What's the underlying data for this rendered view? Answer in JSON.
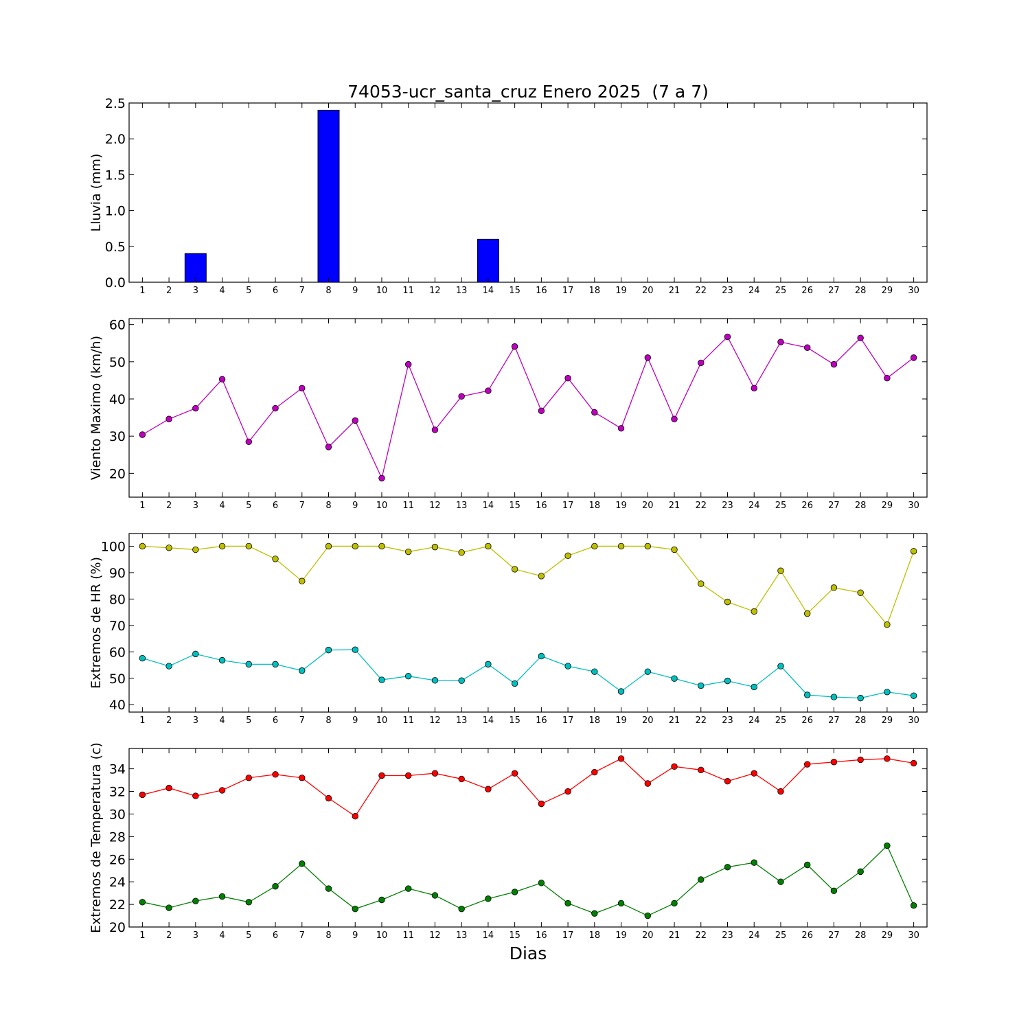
{
  "chart_data": [
    {
      "type": "bar",
      "title": "74053-ucr_santa_cruz Enero 2025  (7 a 7)",
      "ylabel": "Lluvia (mm)",
      "xlabel": "",
      "ylim": [
        0,
        2.5
      ],
      "yticks": [
        "0.0",
        "0.5",
        "1.0",
        "1.5",
        "2.0",
        "2.5"
      ],
      "categories": [
        "1",
        "2",
        "3",
        "4",
        "5",
        "6",
        "7",
        "8",
        "9",
        "10",
        "11",
        "12",
        "13",
        "14",
        "15",
        "16",
        "17",
        "18",
        "19",
        "20",
        "21",
        "22",
        "23",
        "24",
        "25",
        "26",
        "27",
        "28",
        "29",
        "30"
      ],
      "series": [
        {
          "color": "#0000ff",
          "values": [
            0,
            0,
            0.4,
            0,
            0,
            0,
            0,
            2.4,
            0,
            0,
            0,
            0,
            0,
            0.6,
            0,
            0,
            0,
            0,
            0,
            0,
            0,
            0,
            0,
            0,
            0,
            0,
            0,
            0,
            0,
            0
          ]
        }
      ]
    },
    {
      "type": "line",
      "title": "",
      "ylabel": "Viento Maximo (km/h)",
      "xlabel": "",
      "ylim": [
        13.6,
        61.6
      ],
      "yticks": [
        "20",
        "30",
        "40",
        "50",
        "60"
      ],
      "categories": [
        "1",
        "2",
        "3",
        "4",
        "5",
        "6",
        "7",
        "8",
        "9",
        "10",
        "11",
        "12",
        "13",
        "14",
        "15",
        "16",
        "17",
        "18",
        "19",
        "20",
        "21",
        "22",
        "23",
        "24",
        "25",
        "26",
        "27",
        "28",
        "29",
        "30"
      ],
      "series": [
        {
          "color": "#bf00bf",
          "values": [
            30.4,
            34.6,
            37.5,
            45.3,
            28.5,
            37.5,
            42.9,
            27.1,
            34.2,
            18.7,
            49.3,
            31.7,
            40.7,
            42.2,
            54.1,
            36.8,
            45.6,
            36.4,
            32.1,
            51.1,
            34.6,
            49.7,
            56.7,
            42.9,
            55.3,
            53.8,
            49.3,
            56.4,
            45.6,
            51.1
          ]
        }
      ]
    },
    {
      "type": "line",
      "title": "",
      "ylabel": "Extremos de HR (%)",
      "xlabel": "",
      "ylim": [
        37.2,
        104.8
      ],
      "yticks": [
        "40",
        "50",
        "60",
        "70",
        "80",
        "90",
        "100"
      ],
      "categories": [
        "1",
        "2",
        "3",
        "4",
        "5",
        "6",
        "7",
        "8",
        "9",
        "10",
        "11",
        "12",
        "13",
        "14",
        "15",
        "16",
        "17",
        "18",
        "19",
        "20",
        "21",
        "22",
        "23",
        "24",
        "25",
        "26",
        "27",
        "28",
        "29",
        "30"
      ],
      "series": [
        {
          "color": "#bfbf00",
          "values": [
            100,
            99.4,
            98.7,
            100,
            100,
            95.2,
            86.8,
            100,
            100,
            100,
            97.9,
            99.7,
            97.6,
            100,
            91.3,
            88.7,
            96.4,
            100,
            100,
            100,
            98.7,
            85.8,
            78.9,
            75.3,
            90.7,
            74.5,
            84.3,
            82.4,
            70.3,
            98.1
          ]
        },
        {
          "color": "#00bfbf",
          "values": [
            57.6,
            54.6,
            59.2,
            56.8,
            55.3,
            55.3,
            52.9,
            60.7,
            60.8,
            49.4,
            50.8,
            49.2,
            49.1,
            55.3,
            48,
            58.4,
            54.6,
            52.5,
            45,
            52.5,
            49.9,
            47.2,
            49,
            46.7,
            54.6,
            43.7,
            42.9,
            42.5,
            44.8,
            43.4
          ]
        }
      ]
    },
    {
      "type": "line",
      "title": "",
      "ylabel": "Extremos de Temperatura (c)",
      "xlabel": "Dias",
      "ylim": [
        20,
        35.8
      ],
      "yticks": [
        "20",
        "22",
        "24",
        "26",
        "28",
        "30",
        "32",
        "34"
      ],
      "categories": [
        "1",
        "2",
        "3",
        "4",
        "5",
        "6",
        "7",
        "8",
        "9",
        "10",
        "11",
        "12",
        "13",
        "14",
        "15",
        "16",
        "17",
        "18",
        "19",
        "20",
        "21",
        "22",
        "23",
        "24",
        "25",
        "26",
        "27",
        "28",
        "29",
        "30"
      ],
      "series": [
        {
          "color": "#ff0000",
          "values": [
            31.7,
            32.3,
            31.6,
            32.1,
            33.2,
            33.5,
            33.2,
            31.4,
            29.8,
            33.4,
            33.4,
            33.6,
            33.1,
            32.2,
            33.6,
            30.9,
            32,
            33.7,
            34.9,
            32.7,
            34.2,
            33.9,
            32.9,
            33.6,
            32,
            34.4,
            34.6,
            34.8,
            34.9,
            34.5
          ]
        },
        {
          "color": "#008000",
          "values": [
            22.2,
            21.7,
            22.3,
            22.7,
            22.2,
            23.6,
            25.6,
            23.4,
            21.6,
            22.4,
            23.4,
            22.8,
            21.6,
            22.5,
            23.1,
            23.9,
            22.1,
            21.2,
            22.1,
            21,
            22.1,
            24.2,
            25.3,
            25.7,
            24,
            25.5,
            23.2,
            24.9,
            27.2,
            21.9
          ]
        }
      ]
    }
  ]
}
